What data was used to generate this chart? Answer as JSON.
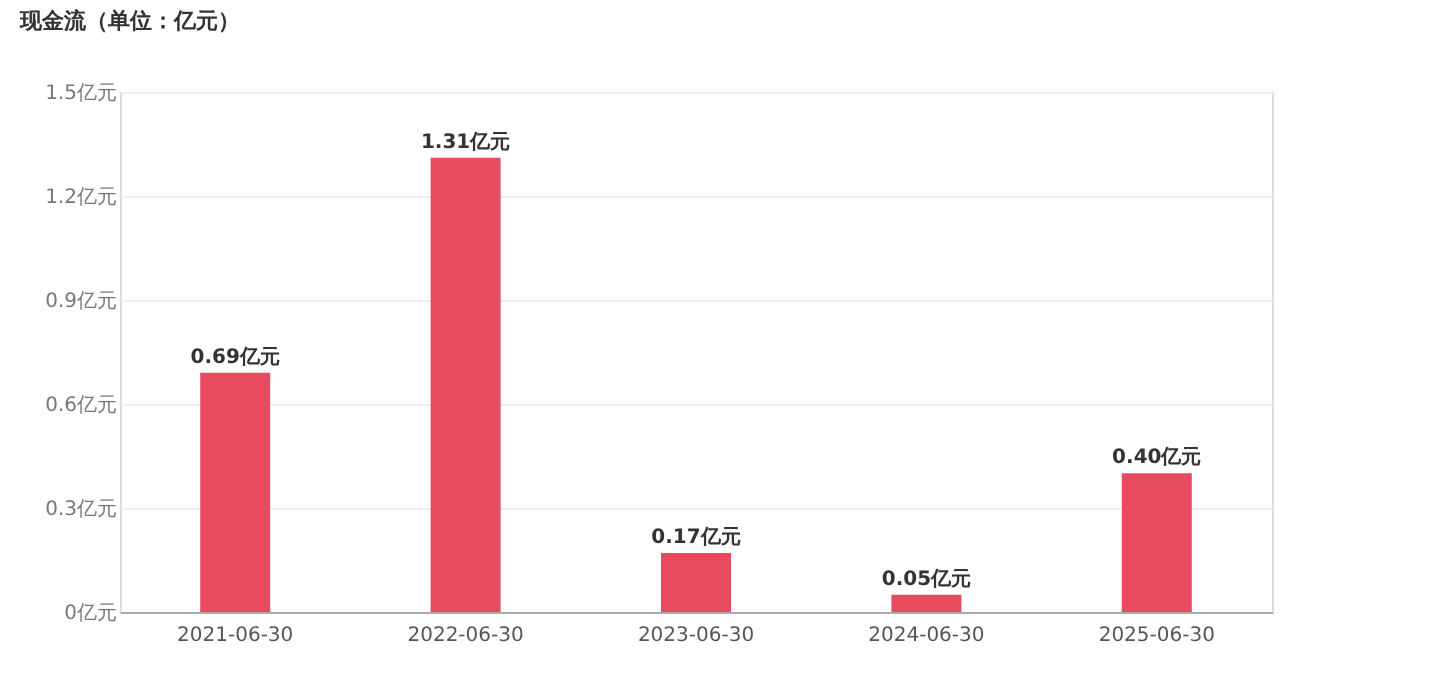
{
  "chart_data": {
    "type": "bar",
    "title": "现金流（单位：亿元）",
    "categories": [
      "2021-06-30",
      "2022-06-30",
      "2023-06-30",
      "2024-06-30",
      "2025-06-30"
    ],
    "values": [
      0.69,
      1.31,
      0.17,
      0.05,
      0.4
    ],
    "value_labels": [
      "0.69亿元",
      "1.31亿元",
      "0.17亿元",
      "0.05亿元",
      "0.40亿元"
    ],
    "color": "#e84a5f",
    "ylim": [
      0,
      1.5
    ],
    "yticks": [
      {
        "value": 0,
        "label": "0亿元"
      },
      {
        "value": 0.3,
        "label": "0.3亿元"
      },
      {
        "value": 0.6,
        "label": "0.6亿元"
      },
      {
        "value": 0.9,
        "label": "0.9亿元"
      },
      {
        "value": 1.2,
        "label": "1.2亿元"
      },
      {
        "value": 1.5,
        "label": "1.5亿元"
      }
    ],
    "grid": "y"
  }
}
